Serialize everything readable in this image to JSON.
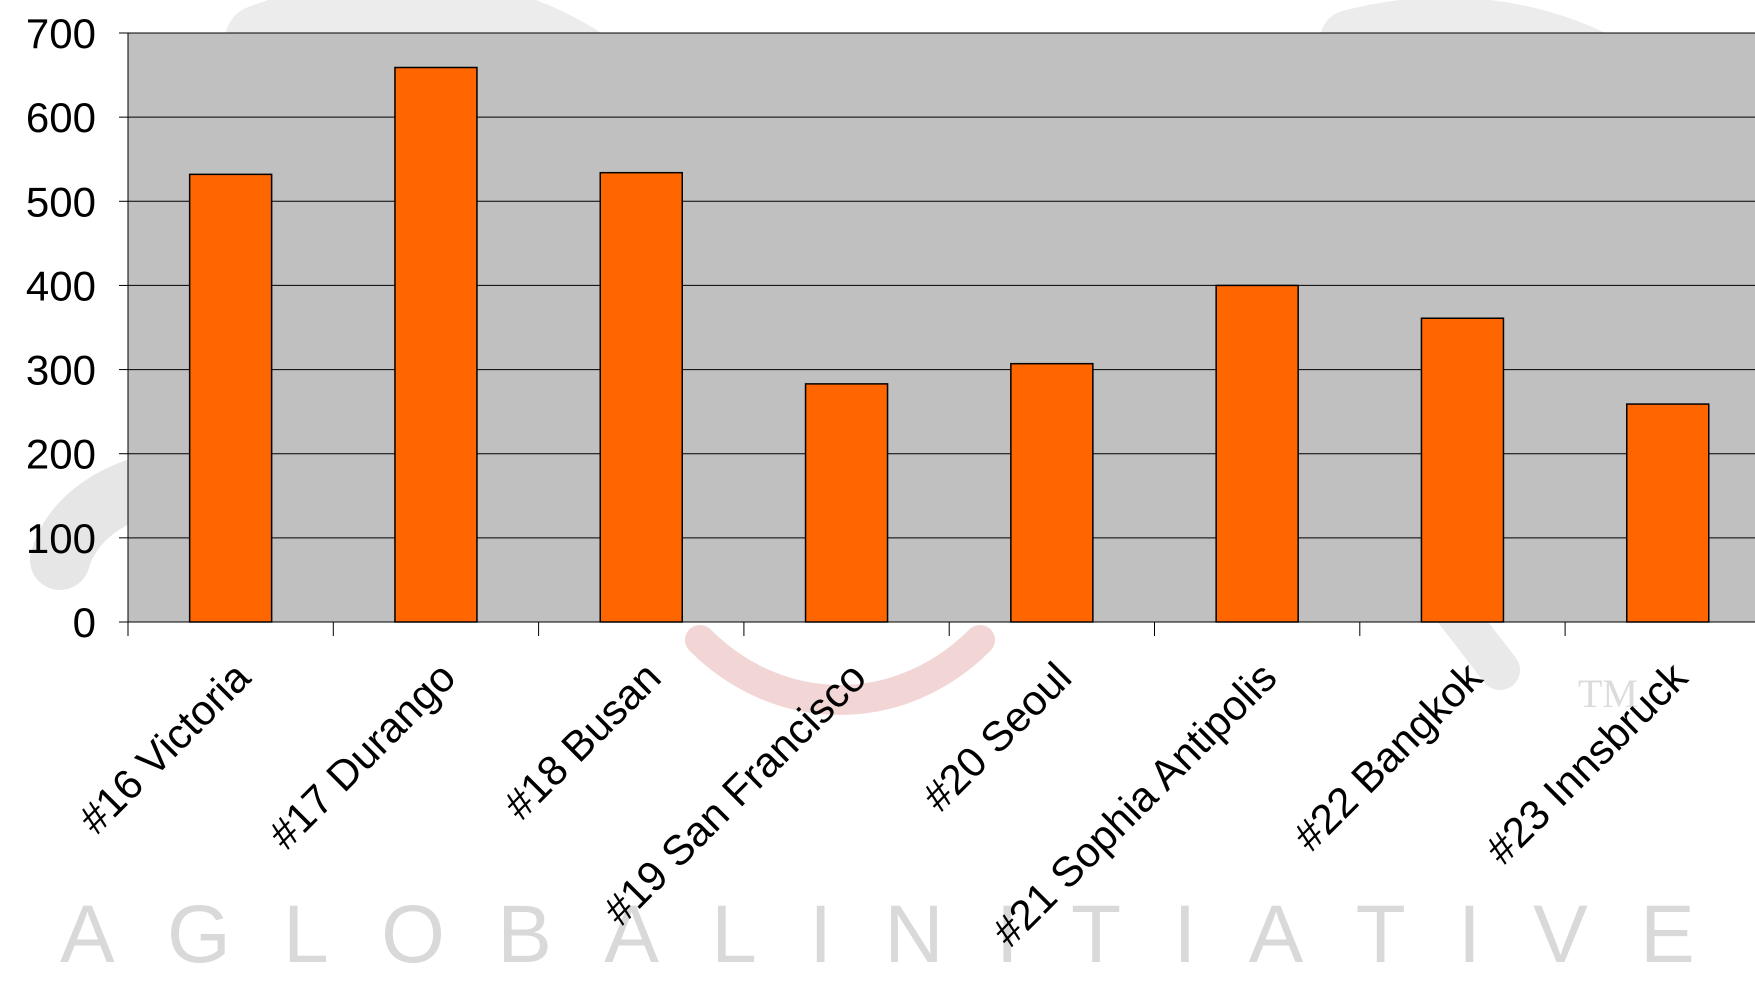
{
  "watermark": {
    "letters": [
      "A",
      "G",
      "L",
      "O",
      "B",
      "A",
      "L",
      "I",
      "N",
      "I",
      "T",
      "I",
      "A",
      "T",
      "I",
      "V",
      "E"
    ],
    "tm": "TM"
  },
  "colors": {
    "bar": "#FF6600",
    "plot_background": "#C0C0C0",
    "gridline": "#000000"
  },
  "chart_data": {
    "type": "bar",
    "categories": [
      "#16 Victoria",
      "#17 Durango",
      "#18 Busan",
      "#19 San Francisco",
      "#20 Seoul",
      "#21 Sophia Antipolis",
      "#22 Bangkok",
      "#23 Innsbruck"
    ],
    "values": [
      532,
      659,
      534,
      283,
      307,
      400,
      361,
      259
    ],
    "yticks": [
      "0",
      "100",
      "200",
      "300",
      "400",
      "500",
      "600",
      "700"
    ],
    "ylim": [
      0,
      700
    ],
    "grid": true
  }
}
